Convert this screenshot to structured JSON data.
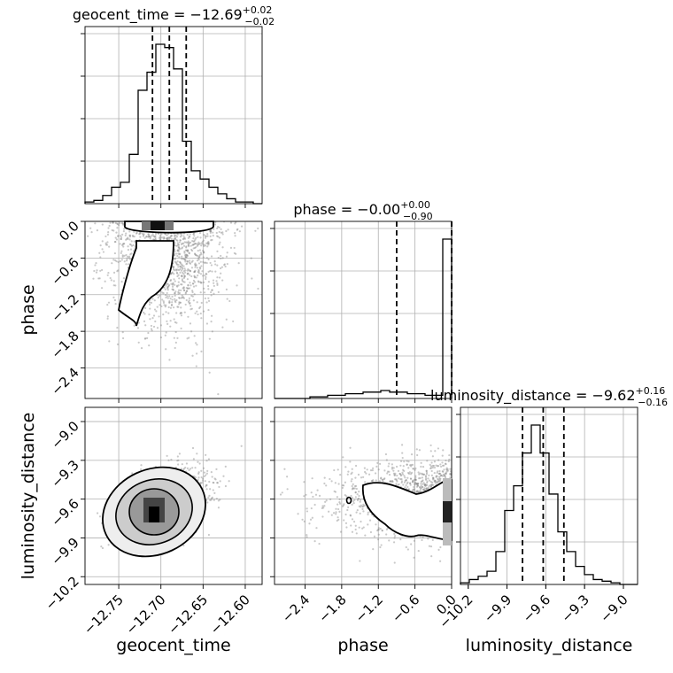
{
  "chart_data": {
    "type": "corner",
    "grid": true,
    "parameters": [
      {
        "name": "geocent_time",
        "range": [
          -12.79,
          -12.58
        ],
        "ticks": [
          -12.75,
          -12.7,
          -12.65,
          -12.6
        ],
        "tick_labels": [
          "−12.75",
          "−12.70",
          "−12.65",
          "−12.60"
        ],
        "label": "geocent_time",
        "title_main": "geocent_time = −12.69",
        "title_sup": "+0.02",
        "title_sub": "−0.02",
        "quantiles": [
          -12.71,
          -12.69,
          -12.67
        ],
        "hist_edges_start": -12.79,
        "hist_bin_width": 0.0105,
        "hist_counts": [
          1,
          2,
          5,
          10,
          13,
          30,
          69,
          80,
          97,
          95,
          82,
          38,
          20,
          15,
          10,
          6,
          3,
          1,
          1,
          0
        ]
      },
      {
        "name": "phase",
        "range": [
          -2.9,
          0.0
        ],
        "ticks": [
          -2.4,
          -1.8,
          -1.2,
          -0.6,
          0.0
        ],
        "tick_labels": [
          "−2.4",
          "−1.8",
          "−1.2",
          "−0.6",
          "0.0"
        ],
        "label": "phase",
        "title_main": "phase = −0.00",
        "title_sup": "+0.00",
        "title_sub": "−0.90",
        "quantiles": [
          -0.9,
          -0.0,
          -0.0
        ],
        "hist_edges_start": -2.9,
        "hist_bin_width": 0.145,
        "hist_counts": [
          0,
          0,
          0,
          0,
          1,
          1,
          2,
          2,
          3,
          3,
          4,
          4,
          5,
          4,
          4,
          3,
          3,
          2,
          2,
          100
        ]
      },
      {
        "name": "luminosity_distance",
        "range": [
          -10.26,
          -8.89
        ],
        "ticks": [
          -10.2,
          -9.9,
          -9.6,
          -9.3,
          -9.0
        ],
        "tick_labels": [
          "−10.2",
          "−9.9",
          "−9.6",
          "−9.3",
          "−9.0"
        ],
        "label": "luminosity_distance",
        "title_main": "luminosity_distance = −9.62",
        "title_sup": "+0.16",
        "title_sub": "−0.16",
        "quantiles": [
          -9.78,
          -9.62,
          -9.46
        ],
        "hist_edges_start": -10.26,
        "hist_bin_width": 0.0685,
        "hist_counts": [
          1,
          3,
          5,
          8,
          20,
          45,
          60,
          80,
          97,
          80,
          55,
          32,
          20,
          11,
          6,
          3,
          2,
          1,
          0,
          0
        ]
      }
    ],
    "joint_panels": [
      {
        "x": "geocent_time",
        "y": "phase",
        "center": [
          -12.69,
          -0.25
        ],
        "spread": [
          0.035,
          0.75
        ],
        "corr": 0.0,
        "contour_level_shape": "tall, cut at phase 0"
      },
      {
        "x": "geocent_time",
        "y": "luminosity_distance",
        "center": [
          -12.695,
          -9.62
        ],
        "spread": [
          0.025,
          0.13
        ],
        "corr": 0.35
      },
      {
        "x": "phase",
        "y": "luminosity_distance",
        "center": [
          -0.8,
          -9.6
        ],
        "spread": [
          0.7,
          0.14
        ],
        "corr": 0.0
      }
    ]
  }
}
